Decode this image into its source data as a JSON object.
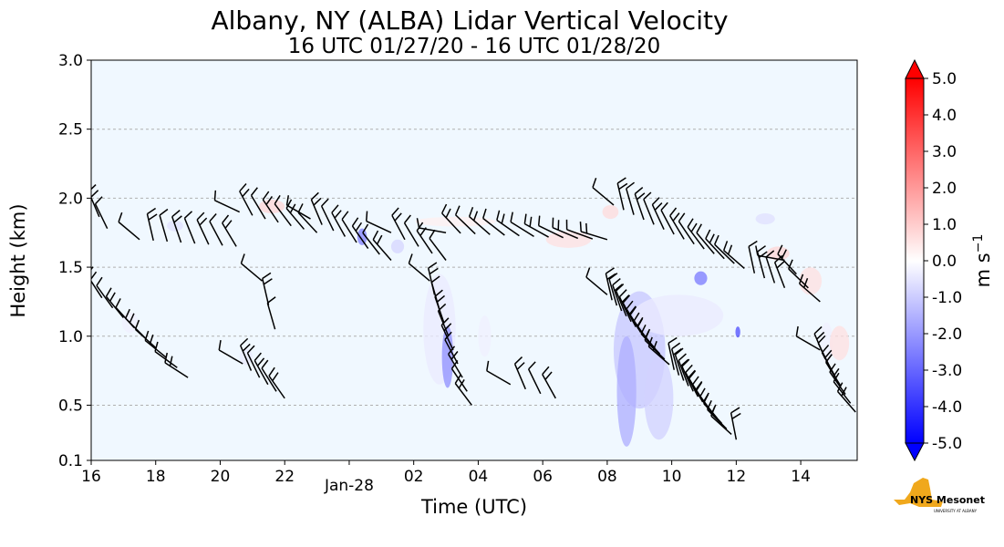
{
  "chart_data": {
    "type": "heatmap",
    "title": "Albany, NY (ALBA) Lidar Vertical Velocity",
    "subtitle": "16 UTC 01/27/20 - 16 UTC 01/28/20",
    "xlabel": "Time (UTC)",
    "ylabel": "Height (km)",
    "x_ticks": [
      {
        "h": 0,
        "label": "16"
      },
      {
        "h": 2,
        "label": "18"
      },
      {
        "h": 4,
        "label": "20"
      },
      {
        "h": 6,
        "label": "22"
      },
      {
        "h": 8,
        "label": "Jan-28"
      },
      {
        "h": 10,
        "label": "02"
      },
      {
        "h": 12,
        "label": "04"
      },
      {
        "h": 14,
        "label": "06"
      },
      {
        "h": 16,
        "label": "08"
      },
      {
        "h": 18,
        "label": "10"
      },
      {
        "h": 20,
        "label": "12"
      },
      {
        "h": 22,
        "label": "14"
      }
    ],
    "xlim_hours": [
      0,
      23.75
    ],
    "y_ticks": [
      {
        "v": 0.1,
        "label": "0.1"
      },
      {
        "v": 0.5,
        "label": "0.5"
      },
      {
        "v": 1.0,
        "label": "1.0"
      },
      {
        "v": 1.5,
        "label": "1.5"
      },
      {
        "v": 2.0,
        "label": "2.0"
      },
      {
        "v": 2.5,
        "label": "2.5"
      },
      {
        "v": 3.0,
        "label": "3.0"
      }
    ],
    "ylim": [
      0.1,
      3.0
    ],
    "grid": "horizontal-dashed",
    "colorbar": {
      "label": "m s",
      "label_superscript": "−1",
      "min": -5.0,
      "max": 5.0,
      "ticks": [
        "-5.0",
        "-4.0",
        "-3.0",
        "-2.0",
        "-1.0",
        "0.0",
        "1.0",
        "2.0",
        "3.0",
        "4.0",
        "5.0"
      ],
      "low_color": "#0000ff",
      "mid_color": "#ffffff",
      "high_color": "#ff0000",
      "extend": "both"
    },
    "background_color": "#f0f8ff",
    "velocity_patches": [
      {
        "t": 2.6,
        "h": 1.8,
        "w": 0.5,
        "hh": 0.08,
        "v": -0.6
      },
      {
        "t": 5.6,
        "h": 1.94,
        "w": 0.8,
        "hh": 0.1,
        "v": 0.8
      },
      {
        "t": 8.4,
        "h": 1.72,
        "w": 0.3,
        "hh": 0.12,
        "v": -2.5
      },
      {
        "t": 9.5,
        "h": 1.65,
        "w": 0.4,
        "hh": 0.1,
        "v": -0.8
      },
      {
        "t": 11.3,
        "h": 1.83,
        "w": 2.5,
        "hh": 0.07,
        "v": 0.3
      },
      {
        "t": 10.8,
        "h": 1.05,
        "w": 1.0,
        "hh": 0.8,
        "v": -0.4
      },
      {
        "t": 11.05,
        "h": 0.85,
        "w": 0.35,
        "hh": 0.45,
        "v": -2.2
      },
      {
        "t": 12.2,
        "h": 1.0,
        "w": 0.4,
        "hh": 0.3,
        "v": -0.3
      },
      {
        "t": 14.8,
        "h": 1.7,
        "w": 1.4,
        "hh": 0.12,
        "v": 0.6
      },
      {
        "t": 16.1,
        "h": 1.9,
        "w": 0.5,
        "hh": 0.1,
        "v": 0.7
      },
      {
        "t": 17.0,
        "h": 0.9,
        "w": 1.6,
        "hh": 0.85,
        "v": -1.1
      },
      {
        "t": 16.6,
        "h": 0.6,
        "w": 0.6,
        "hh": 0.8,
        "v": -1.6
      },
      {
        "t": 17.6,
        "h": 0.55,
        "w": 0.9,
        "hh": 0.6,
        "v": -0.9
      },
      {
        "t": 18.2,
        "h": 1.15,
        "w": 2.8,
        "hh": 0.3,
        "v": -0.4
      },
      {
        "t": 18.9,
        "h": 1.42,
        "w": 0.4,
        "hh": 0.1,
        "v": -2.6
      },
      {
        "t": 20.05,
        "h": 1.03,
        "w": 0.15,
        "hh": 0.08,
        "v": -3.5
      },
      {
        "t": 20.9,
        "h": 1.85,
        "w": 0.6,
        "hh": 0.08,
        "v": -0.6
      },
      {
        "t": 21.3,
        "h": 1.6,
        "w": 0.7,
        "hh": 0.1,
        "v": 0.8
      },
      {
        "t": 22.3,
        "h": 1.4,
        "w": 0.7,
        "hh": 0.2,
        "v": 0.6
      },
      {
        "t": 22.8,
        "h": 0.95,
        "w": 0.4,
        "hh": 0.3,
        "v": -0.3
      },
      {
        "t": 23.2,
        "h": 0.95,
        "w": 0.6,
        "hh": 0.25,
        "v": 0.6
      },
      {
        "t": 1.2,
        "h": 1.1,
        "w": 0.5,
        "hh": 0.15,
        "v": -0.3
      },
      {
        "t": 4.8,
        "h": 0.85,
        "w": 0.4,
        "hh": 0.12,
        "v": -0.4
      }
    ],
    "barb_groups": [
      {
        "t0": 0.0,
        "t1": 0.5,
        "h0": 1.95,
        "h1": 1.78,
        "n": 3,
        "dir": 320
      },
      {
        "t0": 1.5,
        "t1": 4.5,
        "h0": 1.7,
        "h1": 1.65,
        "n": 8,
        "dir": 330
      },
      {
        "t0": 4.6,
        "t1": 7.0,
        "h0": 1.9,
        "h1": 1.75,
        "n": 7,
        "dir": 315
      },
      {
        "t0": 6.8,
        "t1": 9.3,
        "h0": 1.85,
        "h1": 1.55,
        "n": 8,
        "dir": 320
      },
      {
        "t0": 9.3,
        "t1": 11.0,
        "h0": 1.75,
        "h1": 1.55,
        "n": 5,
        "dir": 315
      },
      {
        "t0": 11.0,
        "t1": 16.0,
        "h0": 1.75,
        "h1": 1.7,
        "n": 12,
        "dir": 300
      },
      {
        "t0": 16.2,
        "t1": 21.5,
        "h0": 1.95,
        "h1": 1.35,
        "n": 18,
        "dir": 330
      },
      {
        "t0": 21.5,
        "t1": 22.6,
        "h0": 1.55,
        "h1": 1.25,
        "n": 4,
        "dir": 300
      },
      {
        "t0": 0.0,
        "t1": 3.0,
        "h0": 1.35,
        "h1": 0.7,
        "n": 10,
        "dir": 310
      },
      {
        "t0": 4.7,
        "t1": 6.0,
        "h0": 0.8,
        "h1": 0.55,
        "n": 6,
        "dir": 320
      },
      {
        "t0": 5.3,
        "t1": 5.7,
        "h0": 1.4,
        "h1": 1.05,
        "n": 3,
        "dir": 330
      },
      {
        "t0": 10.5,
        "t1": 11.8,
        "h0": 1.4,
        "h1": 0.5,
        "n": 10,
        "dir": 330
      },
      {
        "t0": 13.0,
        "t1": 14.4,
        "h0": 0.65,
        "h1": 0.55,
        "n": 4,
        "dir": 320
      },
      {
        "t0": 16.0,
        "t1": 20.0,
        "h0": 1.3,
        "h1": 0.25,
        "n": 28,
        "dir": 330
      },
      {
        "t0": 22.6,
        "t1": 23.7,
        "h0": 0.9,
        "h1": 0.45,
        "n": 8,
        "dir": 320
      }
    ],
    "logo_text": "NYS Mesonet",
    "logo_subtext": "UNIVERSITY AT ALBANY"
  }
}
